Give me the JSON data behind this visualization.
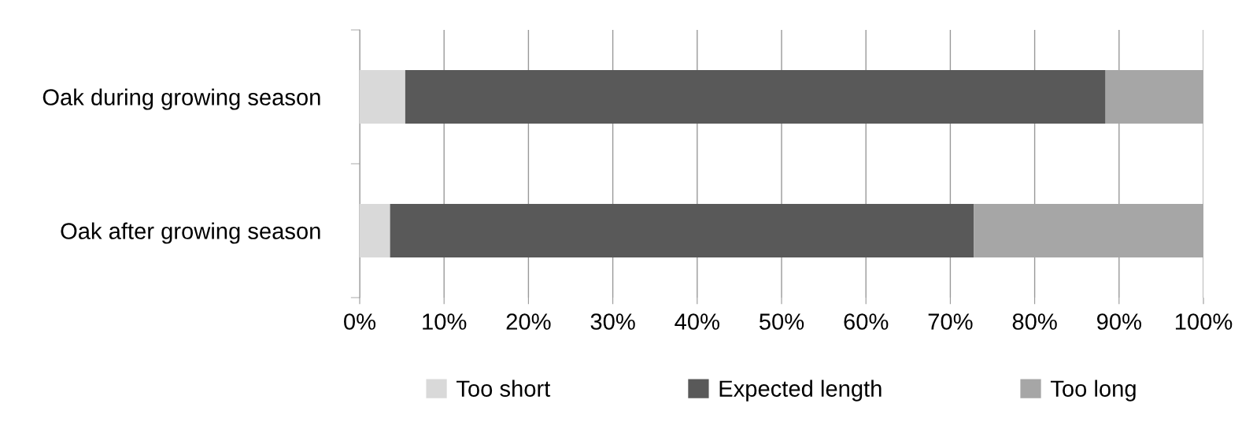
{
  "chart_data": {
    "type": "bar",
    "orientation": "horizontal",
    "stacked": true,
    "categories": [
      "Oak during growing season",
      "Oak after growing season"
    ],
    "series": [
      {
        "name": "Too short",
        "color": "#d9d9d9",
        "values": [
          5.4,
          3.6
        ]
      },
      {
        "name": "Expected length",
        "color": "#595959",
        "values": [
          83.0,
          69.2
        ]
      },
      {
        "name": "Too long",
        "color": "#a6a6a6",
        "values": [
          11.6,
          27.2
        ]
      }
    ],
    "xlim": [
      0,
      100
    ],
    "xticks": [
      {
        "value": 0,
        "label": "0%"
      },
      {
        "value": 10,
        "label": "10%"
      },
      {
        "value": 20,
        "label": "20%"
      },
      {
        "value": 30,
        "label": "30%"
      },
      {
        "value": 40,
        "label": "40%"
      },
      {
        "value": 50,
        "label": "50%"
      },
      {
        "value": 60,
        "label": "60%"
      },
      {
        "value": 70,
        "label": "70%"
      },
      {
        "value": 80,
        "label": "80%"
      },
      {
        "value": 90,
        "label": "90%"
      },
      {
        "value": 100,
        "label": "100%"
      }
    ],
    "grid": "x",
    "legend": "bottom"
  }
}
